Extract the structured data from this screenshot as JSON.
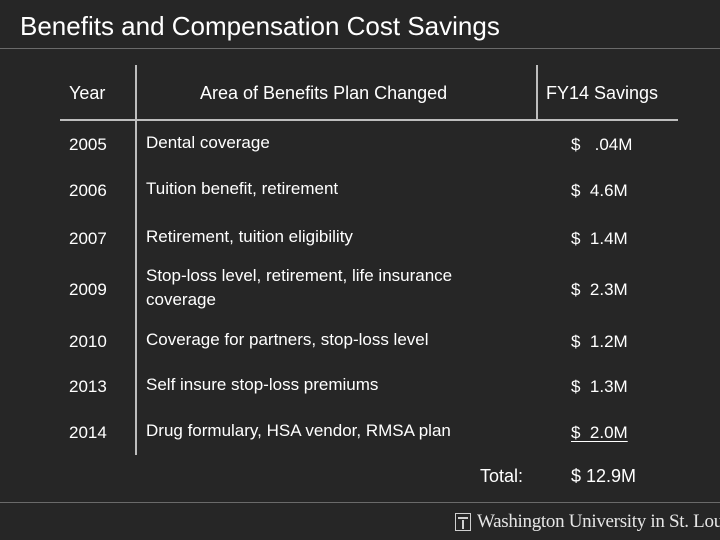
{
  "slide": {
    "title": "Benefits and Compensation Cost Savings"
  },
  "table": {
    "headers": {
      "year": "Year",
      "area": "Area of Benefits Plan Changed",
      "savings": "FY14 Savings"
    },
    "rows": [
      {
        "year": "2005",
        "area_lines": [
          "Dental coverage"
        ],
        "savings": "$   .04M"
      },
      {
        "year": "2006",
        "area_lines": [
          "Tuition benefit, retirement"
        ],
        "savings": "$  4.6M"
      },
      {
        "year": "2007",
        "area_lines": [
          "Retirement, tuition eligibility"
        ],
        "savings": "$  1.4M"
      },
      {
        "year": "2009",
        "area_lines": [
          "Stop-loss level, retirement, life insurance",
          "coverage"
        ],
        "savings": "$  2.3M"
      },
      {
        "year": "2010",
        "area_lines": [
          "Coverage for partners, stop-loss level"
        ],
        "savings": "$  1.2M"
      },
      {
        "year": "2013",
        "area_lines": [
          "Self insure stop-loss premiums"
        ],
        "savings": "$  1.3M"
      },
      {
        "year": "2014",
        "area_lines": [
          "Drug formulary, HSA vendor, RMSA plan"
        ],
        "savings": "$  2.0M"
      }
    ],
    "total_label": "Total:",
    "total_value": "$ 12.9M"
  },
  "footer": {
    "logo_text": "Washington University in St. Louis"
  }
}
